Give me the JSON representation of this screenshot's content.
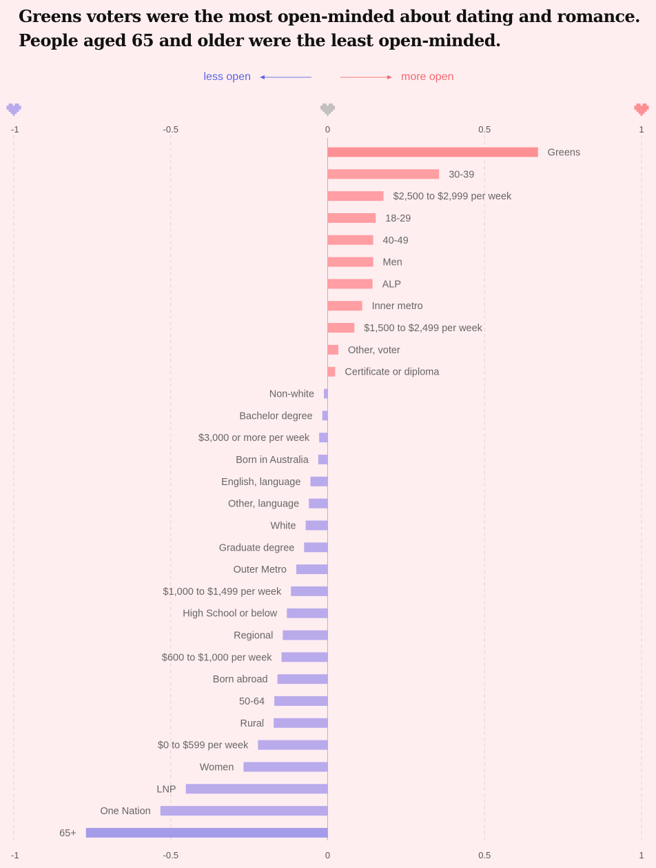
{
  "chart_data": {
    "type": "bar",
    "orientation": "horizontal",
    "title": "Greens voters were the most open-minded about dating and romance. People aged 65 and older were the least open-minded.",
    "direction_labels": {
      "negative": "less open",
      "positive": "more open"
    },
    "xlim": [
      -1,
      1
    ],
    "xticks": [
      -1,
      -0.5,
      0,
      0.5,
      1
    ],
    "xtick_labels": [
      "-1",
      "-0.5",
      "0",
      "0.5",
      "1"
    ],
    "grid": true,
    "colors": {
      "positive": "#ff9ea3",
      "positive_strong": "#fd9094",
      "negative": "#b9aaec",
      "negative_strong": "#a49be9",
      "less_open_text": "#5b67e0",
      "more_open_text": "#f26a70",
      "heart_neutral": "#c4c0c0"
    },
    "icons": [
      "heart-icon-negative",
      "heart-icon-neutral",
      "heart-icon-positive"
    ],
    "categories": [
      "Greens",
      "30-39",
      "$2,500 to $2,999 per week",
      "18-29",
      "40-49",
      "Men",
      "ALP",
      "Inner metro",
      "$1,500 to $2,499 per week",
      "Other, voter",
      "Certificate or diploma",
      "Non-white",
      "Bachelor degree",
      "$3,000 or more per week",
      "Born in Australia",
      "English, language",
      "Other, language",
      "White",
      "Graduate degree",
      "Outer Metro",
      "$1,000 to $1,499 per week",
      "High School or below",
      "Regional",
      "$600 to $1,000 per week",
      "Born abroad",
      "50-64",
      "Rural",
      "$0 to $599 per week",
      "Women",
      "LNP",
      "One Nation",
      "65+"
    ],
    "values": [
      0.67,
      0.355,
      0.178,
      0.153,
      0.145,
      0.145,
      0.143,
      0.11,
      0.085,
      0.034,
      0.024,
      -0.012,
      -0.017,
      -0.027,
      -0.03,
      -0.055,
      -0.06,
      -0.07,
      -0.075,
      -0.1,
      -0.117,
      -0.13,
      -0.143,
      -0.147,
      -0.16,
      -0.17,
      -0.172,
      -0.222,
      -0.268,
      -0.452,
      -0.533,
      -0.77
    ]
  }
}
